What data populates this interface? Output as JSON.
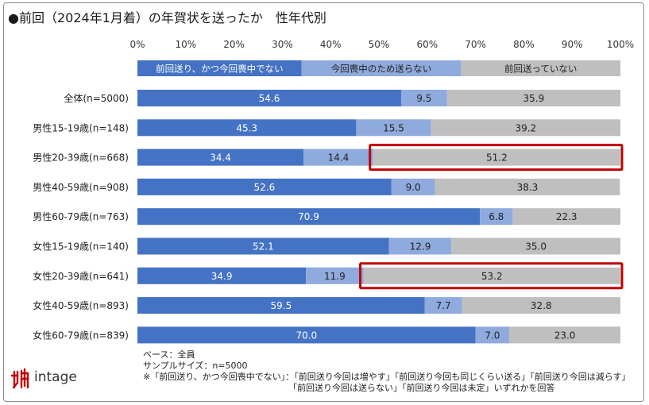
{
  "title": "●前回（2024年1月着）の年賀状を送ったか　性年代別",
  "chart_data": {
    "type": "bar",
    "stacked": true,
    "orientation": "horizontal",
    "x_ticks": [
      "0%",
      "10%",
      "20%",
      "30%",
      "40%",
      "50%",
      "60%",
      "70%",
      "80%",
      "90%",
      "100%"
    ],
    "xlim": [
      0,
      100
    ],
    "legend": [
      {
        "name": "前回送り、かつ今回喪中でない",
        "color": "#4472c4",
        "text_color": "#ffffff",
        "value": 34
      },
      {
        "name": "今回喪中のため送らない",
        "color": "#8faadc",
        "text_color": "#222222",
        "value": 33
      },
      {
        "name": "前回送っていない",
        "color": "#bfbfbf",
        "text_color": "#222222",
        "value": 33
      }
    ],
    "categories": [
      "全体(n=5000)",
      "男性15-19歳(n=148)",
      "男性20-39歳(n=668)",
      "男性40-59歳(n=908)",
      "男性60-79歳(n=763)",
      "女性15-19歳(n=140)",
      "女性20-39歳(n=641)",
      "女性40-59歳(n=893)",
      "女性60-79歳(n=839)"
    ],
    "series": [
      {
        "name": "前回送り、かつ今回喪中でない",
        "values": [
          54.6,
          45.3,
          34.4,
          52.6,
          70.9,
          52.1,
          34.9,
          59.5,
          70.0
        ],
        "labels": [
          "54.6",
          "45.3",
          "34.4",
          "52.6",
          "70.9",
          "52.1",
          "34.9",
          "59.5",
          "70.0"
        ]
      },
      {
        "name": "今回喪中のため送らない",
        "values": [
          9.5,
          15.5,
          14.4,
          9.0,
          6.8,
          12.9,
          11.9,
          7.7,
          7.0
        ],
        "labels": [
          "9.5",
          "15.5",
          "14.4",
          "9.0",
          "6.8",
          "12.9",
          "11.9",
          "7.7",
          "7.0"
        ]
      },
      {
        "name": "前回送っていない",
        "values": [
          35.9,
          39.2,
          51.2,
          38.3,
          22.3,
          35.0,
          53.2,
          32.8,
          23.0
        ],
        "labels": [
          "35.9",
          "39.2",
          "51.2",
          "38.3",
          "22.3",
          "35.0",
          "53.2",
          "32.8",
          "23.0"
        ]
      }
    ],
    "highlight_rows": [
      2,
      6
    ],
    "highlight_color": "#c00000"
  },
  "notes": {
    "line1": "ベース：全員",
    "line2": "サンプルサイズ：n=5000",
    "line3": "※「前回送り、かつ今回喪中でない」：「前回送り今回は増やす」「前回送り今回も同じくらい送る」「前回送り今回は減らす」",
    "line4": "「前回送り今回は送らない」「前回送り今回は未定」いずれかを回答"
  },
  "logo": {
    "text": "intage",
    "mark_color": "#c00000"
  }
}
